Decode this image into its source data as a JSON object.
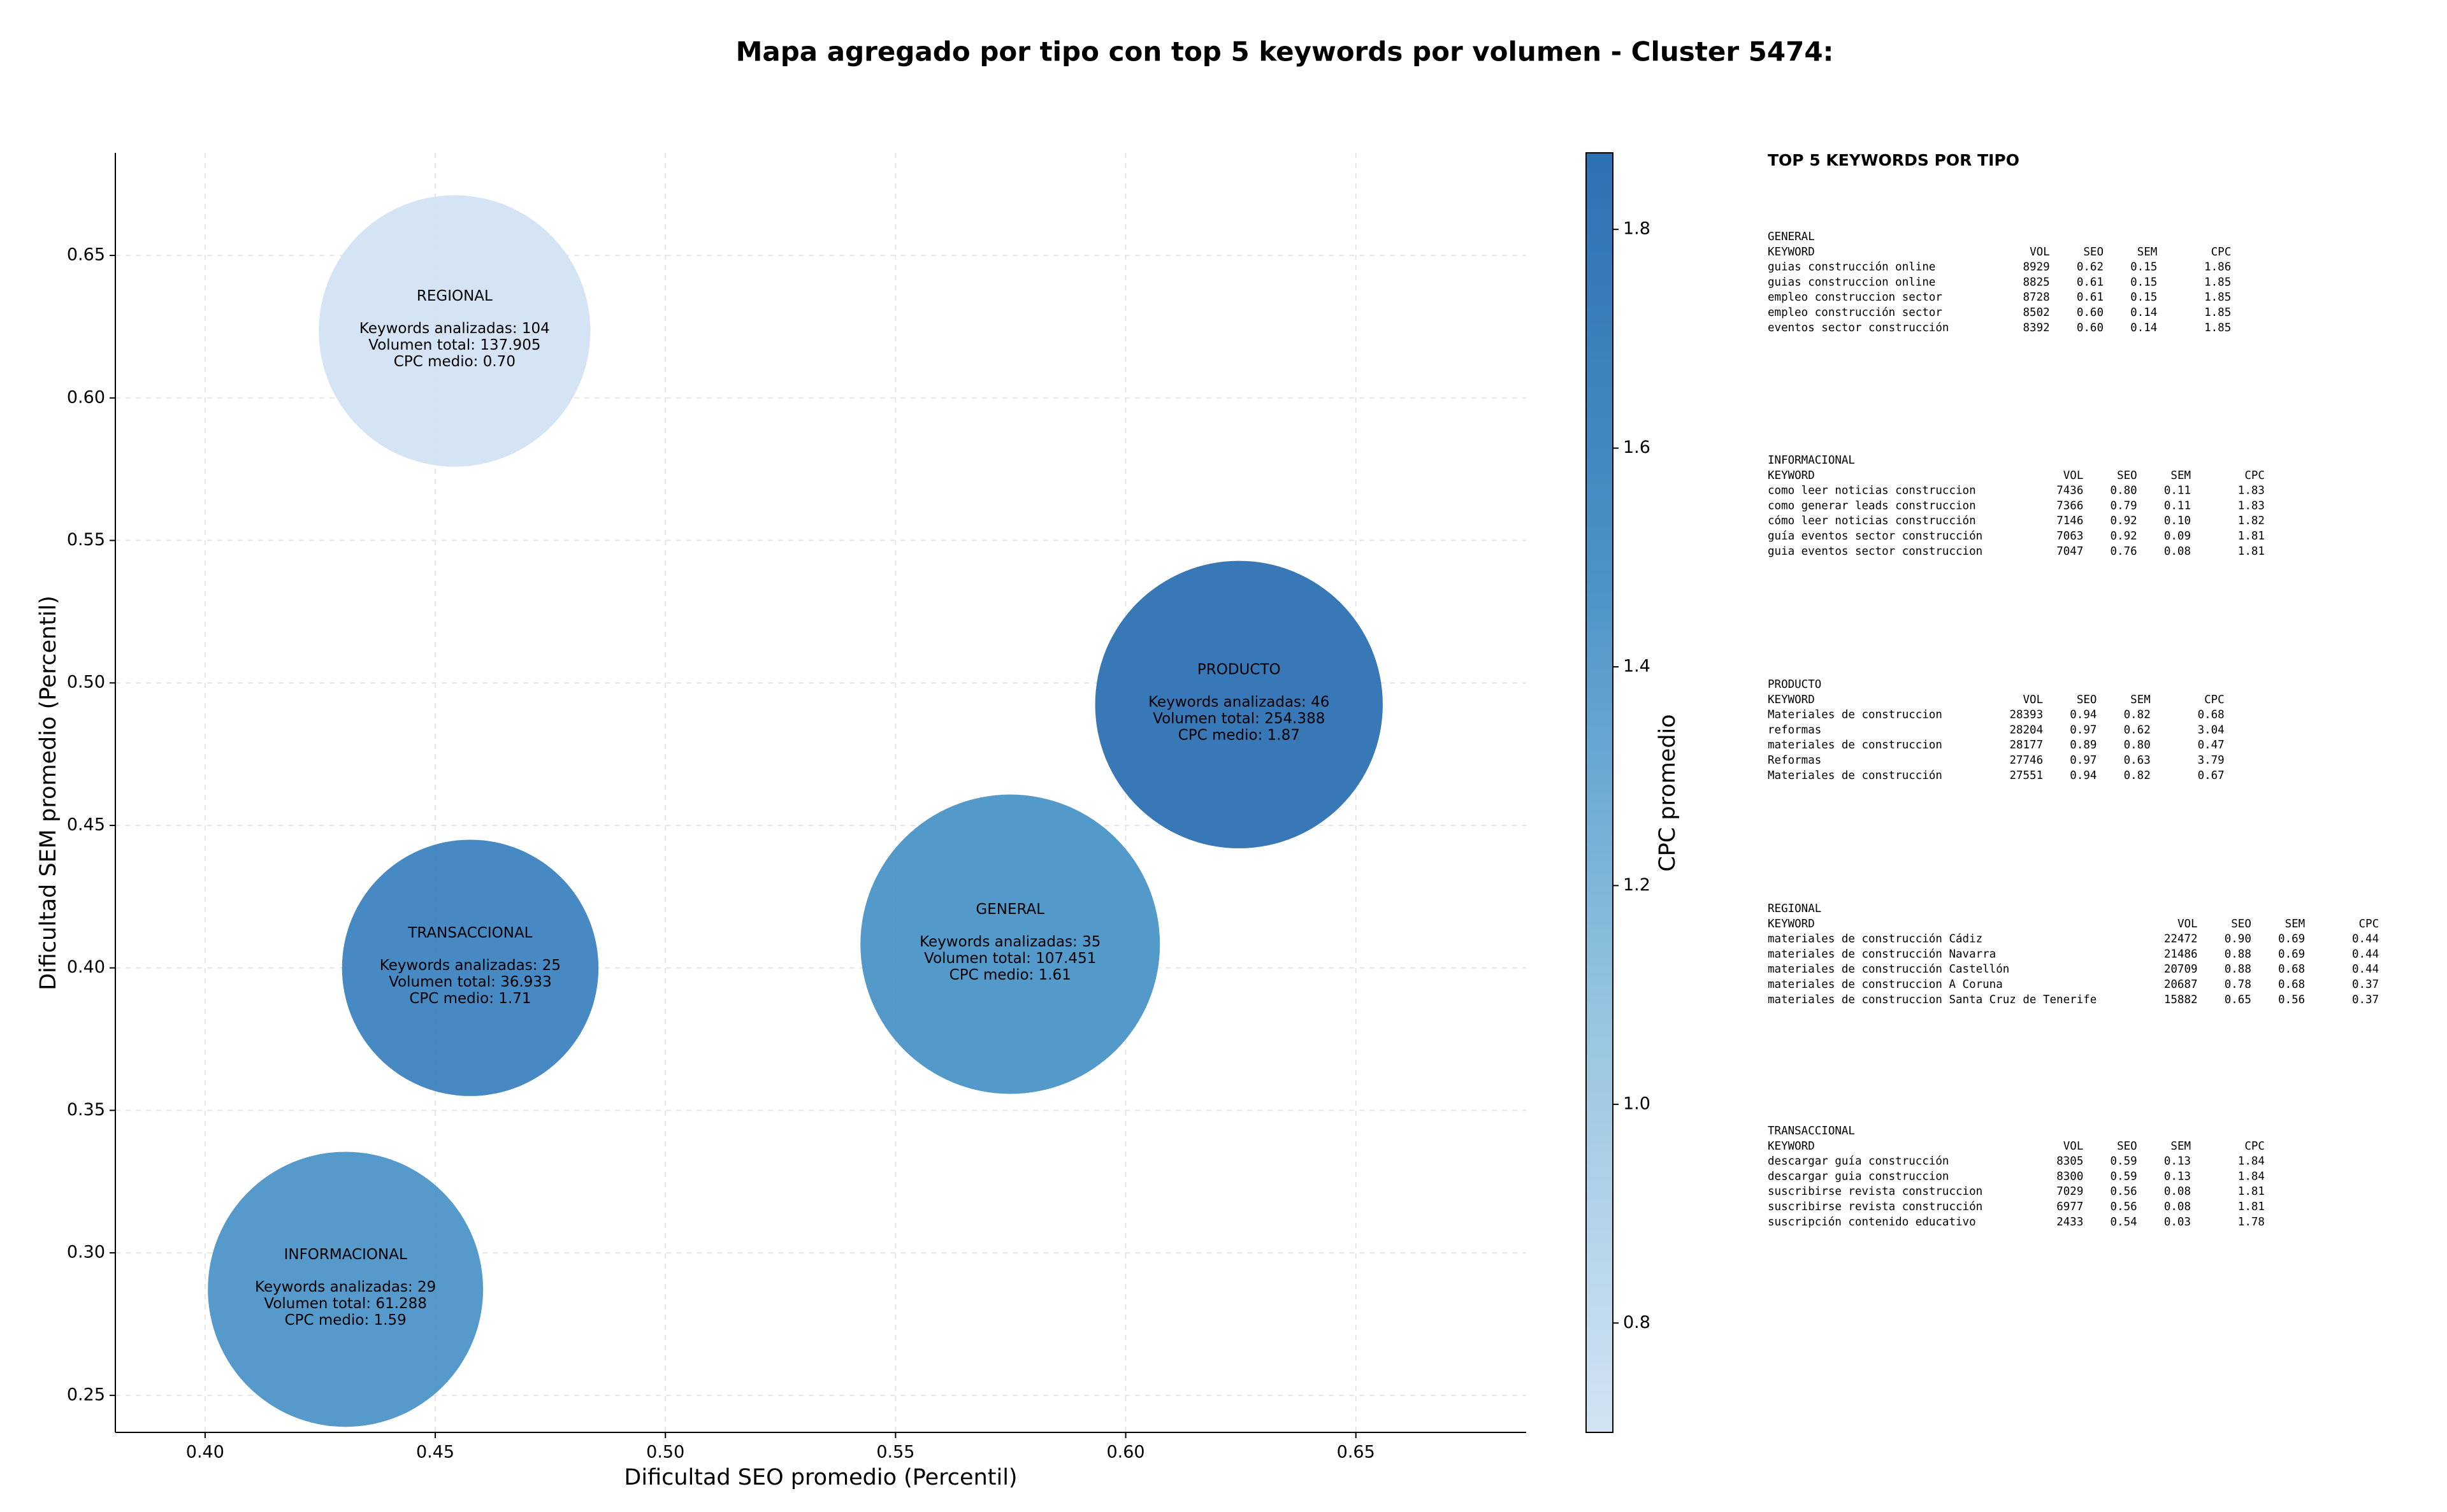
{
  "chart_data": {
    "type": "scatter",
    "title": "Mapa agregado por tipo con top 5 keywords por volumen - Cluster 5474:",
    "x_label": "Dificultad SEO promedio (Percentil)",
    "y_label": "Dificultad SEM promedio (Percentil)",
    "colorbar_label": "CPC promedio",
    "x": [
      0.4542,
      0.6246,
      0.4576,
      0.5749,
      0.4305
    ],
    "y": [
      0.6235,
      0.4924,
      0.4,
      0.4083,
      0.2872
    ],
    "sizes": [
      7400,
      8300,
      6600,
      9000,
      7600
    ],
    "color_values": [
      0.7,
      1.87,
      1.71,
      1.61,
      1.59
    ],
    "colors": [
      "#d3e3f3",
      "#2e71b2",
      "#3d83c0",
      "#4a93c7",
      "#4c95c8"
    ],
    "labels": [
      [
        "REGIONAL",
        "Keywords analizadas: 104",
        "Volumen total: 137.905",
        "CPC medio: 0.70"
      ],
      [
        "PRODUCTO",
        "Keywords analizadas: 46",
        "Volumen total: 254.388",
        "CPC medio: 1.87"
      ],
      [
        "TRANSACCIONAL",
        "Keywords analizadas: 25",
        "Volumen total: 36.933",
        "CPC medio: 1.71"
      ],
      [
        "GENERAL",
        "Keywords analizadas: 35",
        "Volumen total: 107.451",
        "CPC medio: 1.61"
      ],
      [
        "INFORMACIONAL",
        "Keywords analizadas: 29",
        "Volumen total: 61.288",
        "CPC medio: 1.59"
      ]
    ],
    "xlim": [
      0.3805,
      0.687
    ],
    "ylim": [
      0.237,
      0.686
    ],
    "xticks": [
      {
        "value": 0.4,
        "label": "0.40"
      },
      0.45,
      {
        "value": 0.5,
        "label": "0.50"
      },
      0.55,
      {
        "value": 0.6,
        "label": "0.60"
      },
      0.65
    ],
    "yticks": [
      0.25,
      {
        "value": 0.3,
        "label": "0.30"
      },
      0.35,
      {
        "value": 0.4,
        "label": "0.40"
      },
      0.45,
      {
        "value": 0.5,
        "label": "0.50"
      },
      0.55,
      {
        "value": 0.6,
        "label": "0.60"
      },
      0.65
    ],
    "clim": [
      0.7,
      1.87
    ],
    "cticks": [
      0.8,
      {
        "value": 1.0,
        "label": "1.0"
      },
      1.2,
      1.4,
      1.6,
      1.8
    ],
    "colormap": [
      "#d3e3f3",
      "#94c4df",
      "#4a93c7",
      "#2e71b2"
    ],
    "grid": true
  },
  "text_panel": {
    "title": "TOP 5 KEYWORDS POR TIPO",
    "sections": [
      {
        "name": "GENERAL",
        "columns": [
          "KEYWORD",
          "VOL",
          "SEO",
          "SEM",
          "CPC"
        ],
        "rows": [
          [
            "guias construcción online",
            "8929",
            "0.62",
            "0.15",
            "1.86"
          ],
          [
            "guias construccion online",
            "8825",
            "0.61",
            "0.15",
            "1.85"
          ],
          [
            "empleo construccion sector",
            "8728",
            "0.61",
            "0.15",
            "1.85"
          ],
          [
            "empleo construcción sector",
            "8502",
            "0.60",
            "0.14",
            "1.85"
          ],
          [
            "eventos sector construcción",
            "8392",
            "0.60",
            "0.14",
            "1.85"
          ]
        ]
      },
      {
        "name": "INFORMACIONAL",
        "columns": [
          "KEYWORD",
          "VOL",
          "SEO",
          "SEM",
          "CPC"
        ],
        "rows": [
          [
            "como leer noticias construccion",
            "7436",
            "0.80",
            "0.11",
            "1.83"
          ],
          [
            "como generar leads construccion",
            "7366",
            "0.79",
            "0.11",
            "1.83"
          ],
          [
            "cómo leer noticias construcción",
            "7146",
            "0.92",
            "0.10",
            "1.82"
          ],
          [
            "guía eventos sector construcción",
            "7063",
            "0.92",
            "0.09",
            "1.81"
          ],
          [
            "guia eventos sector construccion",
            "7047",
            "0.76",
            "0.08",
            "1.81"
          ]
        ]
      },
      {
        "name": "PRODUCTO",
        "columns": [
          "KEYWORD",
          "VOL",
          "SEO",
          "SEM",
          "CPC"
        ],
        "rows": [
          [
            "Materiales de construccion",
            "28393",
            "0.94",
            "0.82",
            "0.68"
          ],
          [
            "reformas",
            "28204",
            "0.97",
            "0.62",
            "3.04"
          ],
          [
            "materiales de construccion",
            "28177",
            "0.89",
            "0.80",
            "0.47"
          ],
          [
            "Reformas",
            "27746",
            "0.97",
            "0.63",
            "3.79"
          ],
          [
            "Materiales de construcción",
            "27551",
            "0.94",
            "0.82",
            "0.67"
          ]
        ]
      },
      {
        "name": "REGIONAL",
        "columns": [
          "KEYWORD",
          "VOL",
          "SEO",
          "SEM",
          "CPC"
        ],
        "rows": [
          [
            "materiales de construcción Cádiz",
            "22472",
            "0.90",
            "0.69",
            "0.44"
          ],
          [
            "materiales de construcción Navarra",
            "21486",
            "0.88",
            "0.69",
            "0.44"
          ],
          [
            "materiales de construcción Castellón",
            "20709",
            "0.88",
            "0.68",
            "0.44"
          ],
          [
            "materiales de construccion A Coruna",
            "20687",
            "0.78",
            "0.68",
            "0.37"
          ],
          [
            "materiales de construccion Santa Cruz de Tenerife",
            "15882",
            "0.65",
            "0.56",
            "0.37"
          ]
        ]
      },
      {
        "name": "TRANSACCIONAL",
        "columns": [
          "KEYWORD",
          "VOL",
          "SEO",
          "SEM",
          "CPC"
        ],
        "rows": [
          [
            "descargar guía construcción",
            "8305",
            "0.59",
            "0.13",
            "1.84"
          ],
          [
            "descargar guia construccion",
            "8300",
            "0.59",
            "0.13",
            "1.84"
          ],
          [
            "suscribirse revista construccion",
            "7029",
            "0.56",
            "0.08",
            "1.81"
          ],
          [
            "suscribirse revista construcción",
            "6977",
            "0.56",
            "0.08",
            "1.81"
          ],
          [
            "suscripción contenido educativo",
            "2433",
            "0.54",
            "0.03",
            "1.78"
          ]
        ]
      }
    ]
  }
}
